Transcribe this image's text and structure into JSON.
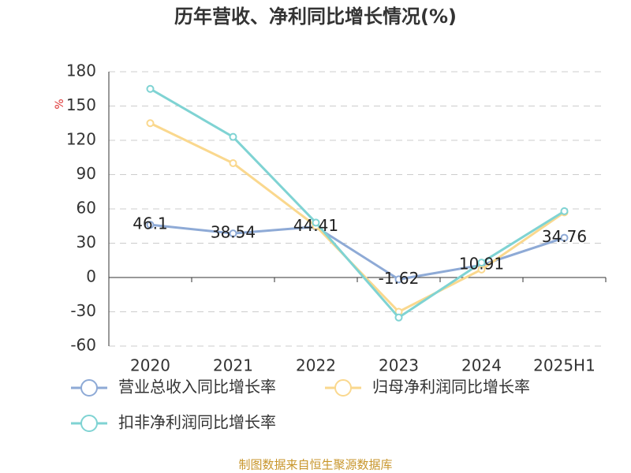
{
  "chart_data": {
    "type": "line",
    "title": "历年营收、净利同比增长情况(%)",
    "y_label": "%",
    "source": "制图数据来自恒生聚源数据库",
    "categories": [
      "2020",
      "2021",
      "2022",
      "2023",
      "2024",
      "2025H1"
    ],
    "series": [
      {
        "name": "营业总收入同比增长率",
        "color": "#8eaad6",
        "values": [
          46.1,
          38.54,
          44.41,
          -1.62,
          10.91,
          34.76
        ],
        "show_labels": true
      },
      {
        "name": "归母净利润同比增长率",
        "color": "#fad88e",
        "values": [
          135,
          100,
          45,
          -30,
          7,
          57
        ],
        "show_labels": false
      },
      {
        "name": "扣非净利润同比增长率",
        "color": "#7fd3d3",
        "values": [
          165,
          123,
          48,
          -35,
          13,
          58
        ],
        "show_labels": false
      }
    ],
    "ylim": [
      -60,
      180
    ],
    "yticks": [
      -60,
      -30,
      0,
      30,
      60,
      90,
      120,
      150,
      180
    ],
    "grid": true
  }
}
